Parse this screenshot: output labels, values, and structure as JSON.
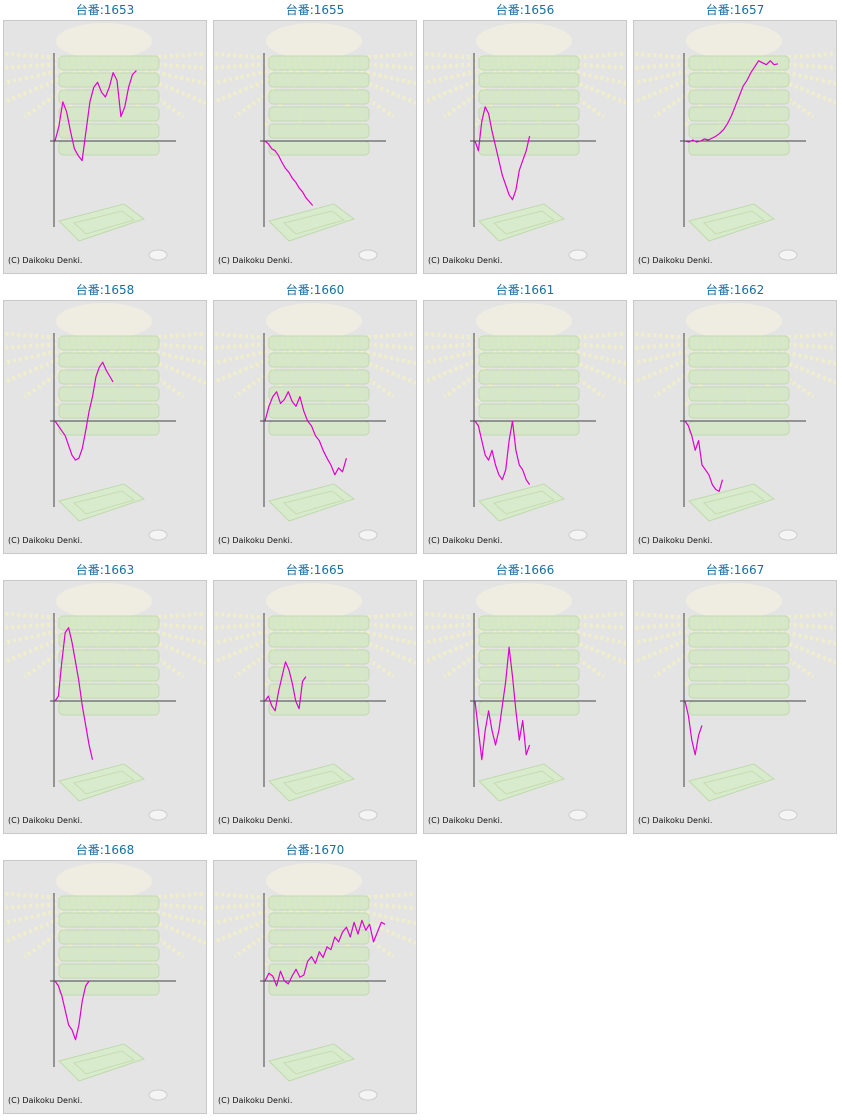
{
  "page": {
    "copyright_text": "(C) Daikoku Denki.",
    "title_prefix": "台番:"
  },
  "colors": {
    "line": "#e000d0",
    "axis": "#444444",
    "panel_bg": "#e4e4e4",
    "title": "#1a6fa0"
  },
  "chart_data": [
    {
      "type": "line",
      "title": "台番:1653",
      "y": [
        0,
        15,
        40,
        30,
        10,
        -8,
        -15,
        -20,
        10,
        40,
        55,
        60,
        50,
        45,
        55,
        70,
        62,
        25,
        35,
        55,
        68,
        72
      ]
    },
    {
      "type": "line",
      "title": "台番:1655",
      "y": [
        0,
        -3,
        -8,
        -10,
        -15,
        -22,
        -28,
        -32,
        -38,
        -42,
        -48,
        -52,
        -58,
        -62,
        -66
      ]
    },
    {
      "type": "line",
      "title": "台番:1656",
      "y": [
        0,
        -10,
        20,
        35,
        28,
        10,
        -5,
        -20,
        -35,
        -45,
        -55,
        -60,
        -50,
        -30,
        -20,
        -10,
        5
      ]
    },
    {
      "type": "line",
      "title": "台番:1657",
      "y": [
        0,
        -1,
        1,
        -1,
        0,
        2,
        1,
        3,
        5,
        8,
        12,
        18,
        26,
        36,
        46,
        56,
        62,
        70,
        76,
        82,
        80,
        78,
        82,
        78,
        79
      ]
    },
    {
      "type": "line",
      "title": "台番:1658",
      "y": [
        0,
        -5,
        -10,
        -15,
        -25,
        -35,
        -40,
        -38,
        -28,
        -10,
        10,
        25,
        45,
        55,
        60,
        52,
        46,
        40
      ]
    },
    {
      "type": "line",
      "title": "台番:1660",
      "y": [
        0,
        15,
        25,
        30,
        18,
        22,
        30,
        20,
        15,
        25,
        10,
        0,
        -5,
        -15,
        -20,
        -30,
        -38,
        -45,
        -55,
        -48,
        -52,
        -38
      ]
    },
    {
      "type": "line",
      "title": "台番:1661",
      "y": [
        0,
        -5,
        -20,
        -35,
        -40,
        -30,
        -45,
        -55,
        -60,
        -50,
        -20,
        0,
        -30,
        -45,
        -50,
        -60,
        -65
      ]
    },
    {
      "type": "line",
      "title": "台番:1662",
      "y": [
        0,
        -5,
        -15,
        -30,
        -20,
        -45,
        -50,
        -55,
        -65,
        -70,
        -72,
        -60
      ]
    },
    {
      "type": "line",
      "title": "台番:1663",
      "y": [
        0,
        5,
        40,
        70,
        75,
        60,
        40,
        20,
        -5,
        -25,
        -45,
        -60
      ]
    },
    {
      "type": "line",
      "title": "台番:1665",
      "y": [
        0,
        5,
        -5,
        -10,
        10,
        25,
        40,
        32,
        18,
        0,
        -8,
        20,
        25
      ]
    },
    {
      "type": "line",
      "title": "台番:1666",
      "y": [
        0,
        -30,
        -60,
        -30,
        -10,
        -30,
        -45,
        -30,
        -5,
        20,
        55,
        25,
        -10,
        -40,
        -20,
        -55,
        -45
      ]
    },
    {
      "type": "line",
      "title": "台番:1667",
      "y": [
        0,
        -15,
        -40,
        -55,
        -35,
        -25
      ]
    },
    {
      "type": "line",
      "title": "台番:1668",
      "y": [
        0,
        -5,
        -15,
        -30,
        -45,
        -50,
        -60,
        -45,
        -20,
        -5,
        0
      ]
    },
    {
      "type": "line",
      "title": "台番:1670",
      "y": [
        0,
        8,
        5,
        -5,
        10,
        0,
        -3,
        5,
        12,
        4,
        6,
        20,
        25,
        18,
        30,
        24,
        35,
        32,
        45,
        40,
        50,
        55,
        45,
        60,
        48,
        62,
        52,
        58,
        40,
        50,
        60,
        58
      ]
    }
  ]
}
